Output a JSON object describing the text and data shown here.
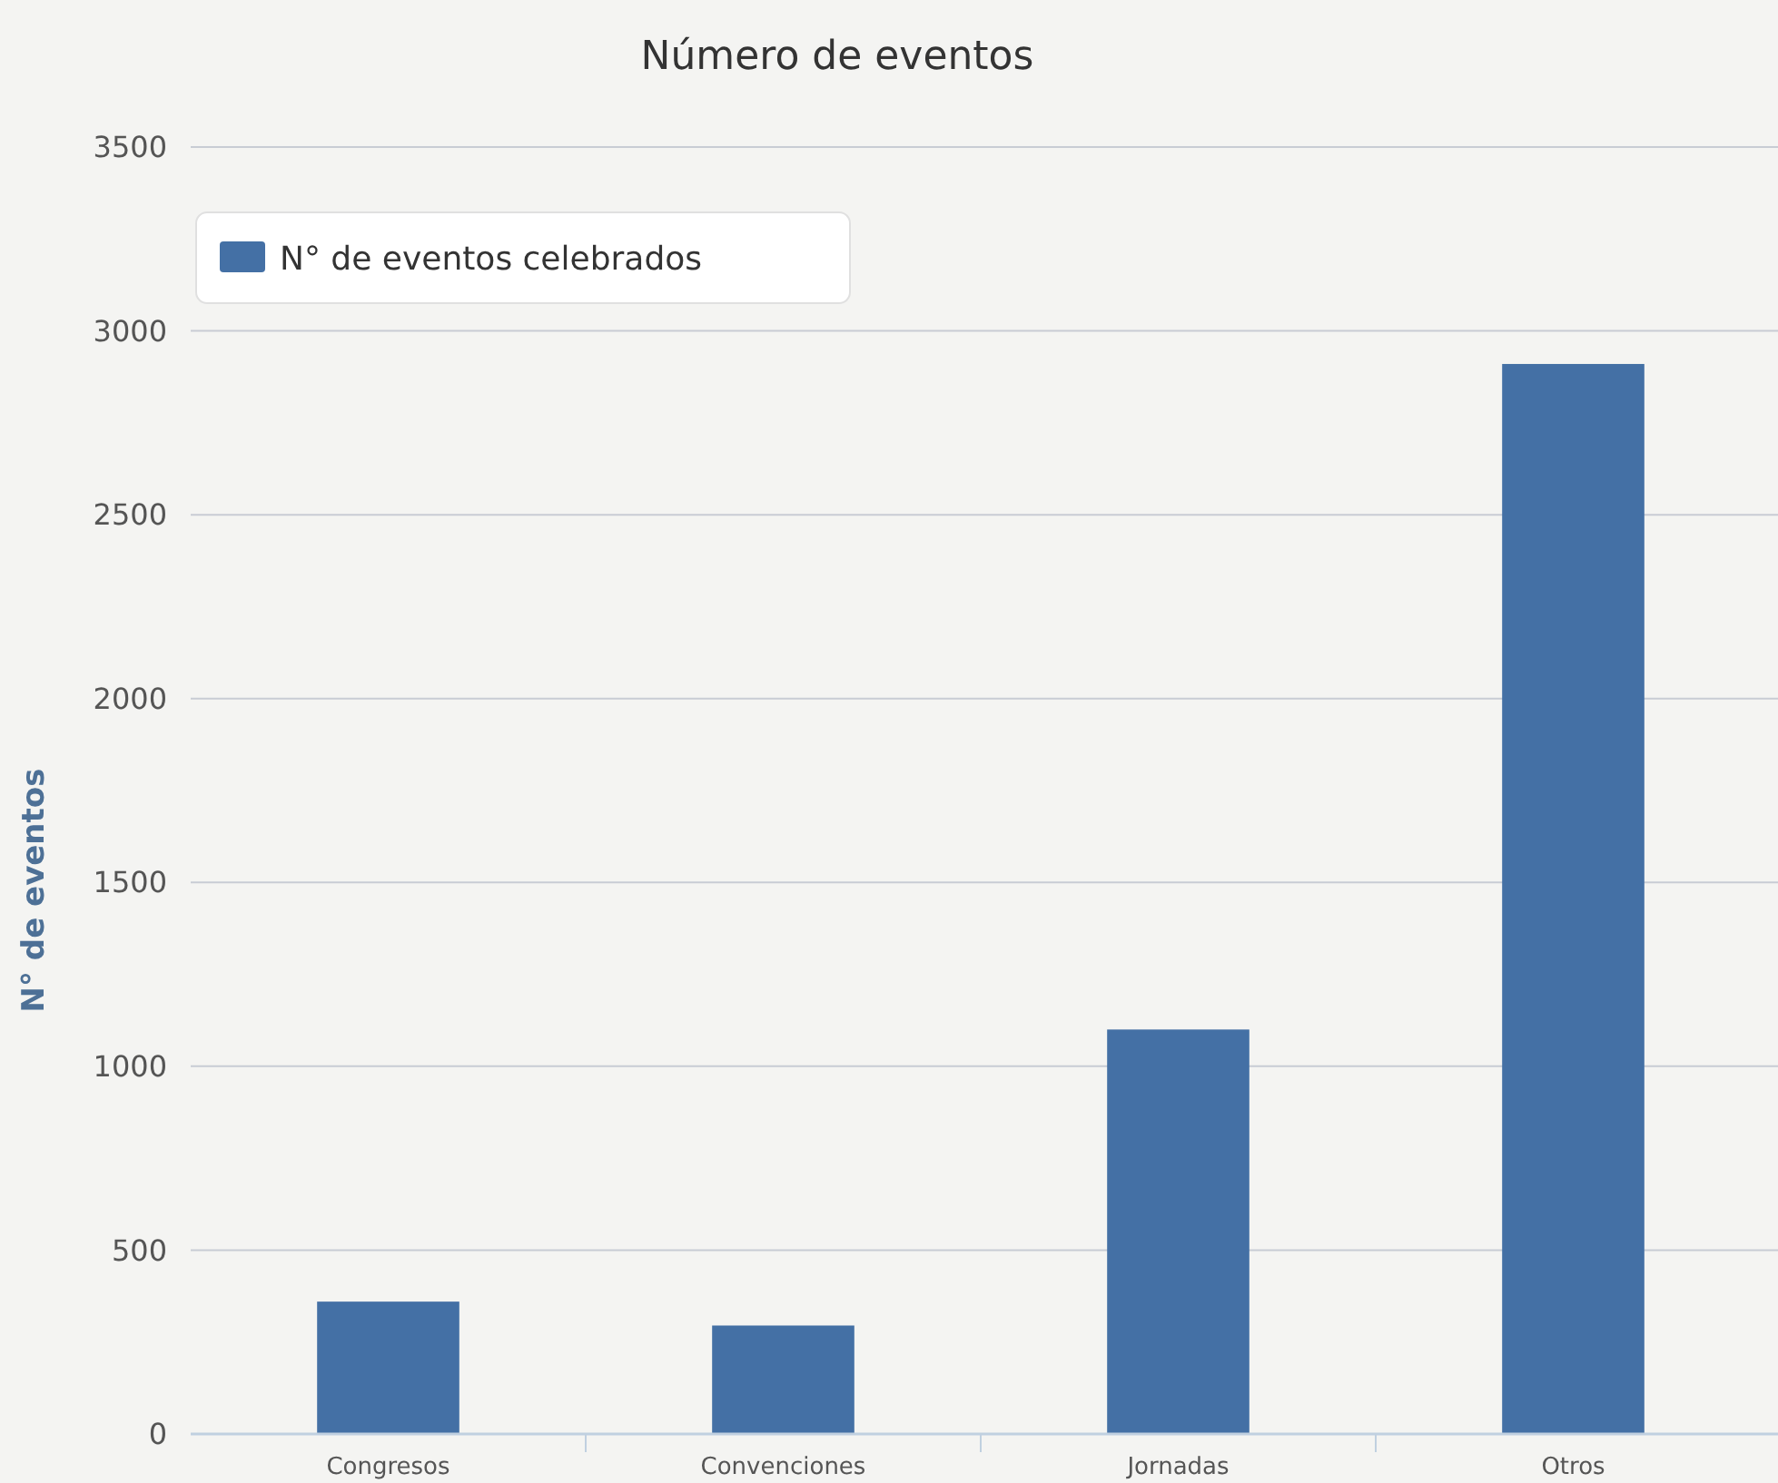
{
  "chart_data": {
    "type": "bar",
    "title": "Número de eventos",
    "ylabel": "N° de eventos",
    "categories": [
      "Congresos",
      "Convenciones",
      "Jornadas",
      "Otros"
    ],
    "series": [
      {
        "name": "N° de eventos celebrados",
        "color": "#4470a5",
        "values": [
          360,
          295,
          1100,
          2910
        ]
      }
    ],
    "ylim": [
      0,
      3500
    ],
    "yticks": [
      0,
      500,
      1000,
      1500,
      2000,
      2500,
      3000,
      3500
    ],
    "grid": "y",
    "legend": "top left"
  }
}
